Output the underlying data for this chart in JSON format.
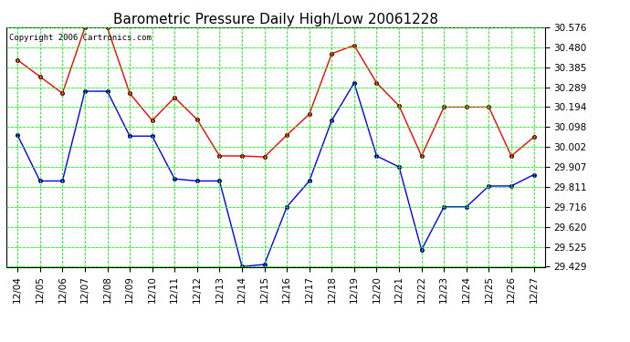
{
  "title": "Barometric Pressure Daily High/Low 20061228",
  "copyright": "Copyright 2006 Cartronics.com",
  "dates": [
    "12/04",
    "12/05",
    "12/06",
    "12/07",
    "12/08",
    "12/09",
    "12/10",
    "12/11",
    "12/12",
    "12/13",
    "12/14",
    "12/15",
    "12/16",
    "12/17",
    "12/18",
    "12/19",
    "12/20",
    "12/21",
    "12/22",
    "12/23",
    "12/24",
    "12/25",
    "12/26",
    "12/27"
  ],
  "high": [
    30.42,
    30.34,
    30.26,
    30.575,
    30.575,
    30.26,
    30.13,
    30.24,
    30.135,
    29.96,
    29.96,
    29.955,
    30.06,
    30.16,
    30.45,
    30.49,
    30.31,
    30.2,
    29.96,
    30.194,
    30.194,
    30.194,
    29.96,
    30.05
  ],
  "low": [
    30.06,
    29.84,
    29.84,
    30.27,
    30.27,
    30.055,
    30.055,
    29.85,
    29.84,
    29.84,
    29.43,
    29.44,
    29.716,
    29.84,
    30.13,
    30.31,
    29.96,
    29.907,
    29.51,
    29.716,
    29.716,
    29.816,
    29.816,
    29.87
  ],
  "yticks": [
    29.429,
    29.525,
    29.62,
    29.716,
    29.811,
    29.907,
    30.002,
    30.098,
    30.194,
    30.289,
    30.385,
    30.48,
    30.576
  ],
  "ymin": 29.429,
  "ymax": 30.576,
  "bg_color": "#ffffff",
  "plot_bg_color": "#ffffff",
  "grid_color": "#00ff00",
  "high_color": "#ff0000",
  "low_color": "#0000ff",
  "marker_color": "#000000",
  "title_fontsize": 11,
  "tick_fontsize": 7.5,
  "copyright_fontsize": 6.5
}
